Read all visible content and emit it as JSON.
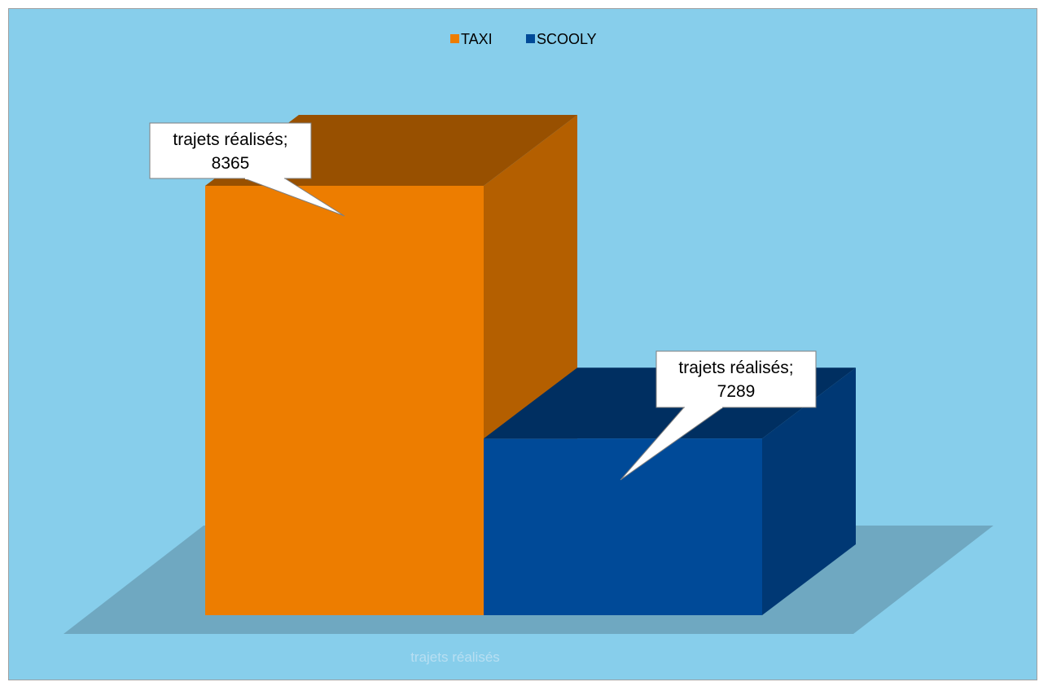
{
  "chart_data": {
    "type": "bar",
    "variant": "3d-clustered-column",
    "categories": [
      "trajets réalisés"
    ],
    "series": [
      {
        "name": "TAXI",
        "values": [
          8365
        ],
        "color": "#ed7d00"
      },
      {
        "name": "SCOOLY",
        "values": [
          7289
        ],
        "color": "#004a98"
      }
    ],
    "data_labels": [
      {
        "category": "trajets réalisés",
        "value": "8365"
      },
      {
        "category": "trajets réalisés",
        "value": "7289"
      }
    ],
    "legend_position": "top",
    "background_color": "#87ceeb",
    "floor_color": "#6fa8c1",
    "grid": false
  }
}
